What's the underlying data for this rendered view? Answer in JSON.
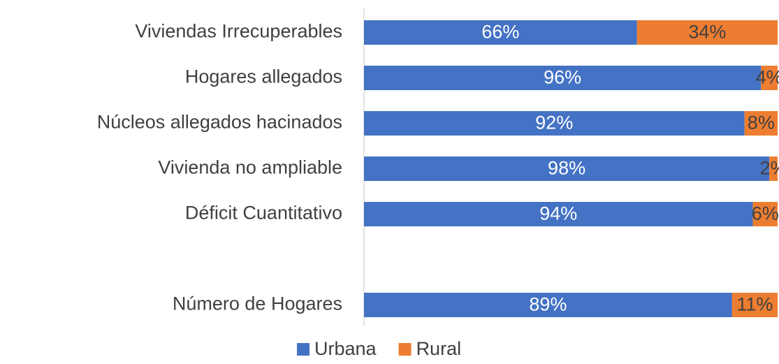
{
  "chart_data": {
    "type": "stacked_barh",
    "categories": [
      "Viviendas Irrecuperables",
      "Hogares allegados",
      "Núcleos allegados hacinados",
      "Vivienda no ampliable",
      "Déficit Cuantitativo",
      null,
      "Número de Hogares"
    ],
    "series": [
      {
        "name": "Urbana",
        "color": "#4472c4",
        "values": [
          66,
          96,
          92,
          98,
          94,
          null,
          89
        ],
        "value_labels": [
          "66%",
          "96%",
          "92%",
          "98%",
          "94%",
          null,
          "89%"
        ]
      },
      {
        "name": "Rural",
        "color": "#ed7d31",
        "values": [
          34,
          4,
          8,
          2,
          6,
          null,
          11
        ],
        "value_labels": [
          "34%",
          "4%",
          "8%",
          "2%",
          "6%",
          null,
          "11%"
        ]
      }
    ],
    "xlim": [
      0,
      100
    ],
    "legend": "bottom"
  }
}
